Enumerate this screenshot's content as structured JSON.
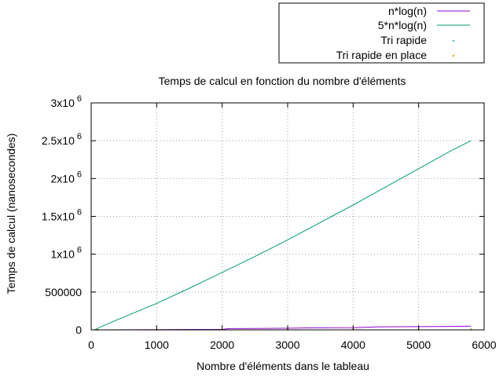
{
  "chart_data": {
    "type": "line",
    "title": "Temps de calcul en fonction du nombre d'éléments",
    "xlabel": "Nombre d'éléments dans le tableau",
    "ylabel": "Temps de calcul (nanosecondes)",
    "xlim": [
      0,
      6000
    ],
    "ylim": [
      0,
      3000000
    ],
    "grid": true,
    "legend_position": "top-right-outside",
    "x_ticks": [
      {
        "value": 0,
        "label": "0"
      },
      {
        "value": 1000,
        "label": "1000"
      },
      {
        "value": 2000,
        "label": "2000"
      },
      {
        "value": 3000,
        "label": "3000"
      },
      {
        "value": 4000,
        "label": "4000"
      },
      {
        "value": 5000,
        "label": "5000"
      },
      {
        "value": 6000,
        "label": "6000"
      }
    ],
    "y_ticks": [
      {
        "value": 0,
        "mant": "0",
        "exp": ""
      },
      {
        "value": 500000,
        "mant": "500000",
        "exp": ""
      },
      {
        "value": 1000000,
        "mant": "1x10",
        "exp": "6"
      },
      {
        "value": 1500000,
        "mant": "1.5x10",
        "exp": "6"
      },
      {
        "value": 2000000,
        "mant": "2x10",
        "exp": "6"
      },
      {
        "value": 2500000,
        "mant": "2.5x10",
        "exp": "6"
      },
      {
        "value": 3000000,
        "mant": "3x10",
        "exp": "6"
      }
    ],
    "series": [
      {
        "name": "n*log(n)",
        "style": "line",
        "color": "#9400d3",
        "x": [
          100,
          500,
          1000,
          1500,
          2000,
          2100,
          2500,
          3000,
          3300,
          3500,
          4000,
          4400,
          4500,
          5000,
          5500,
          5800
        ],
        "y": [
          200,
          1350,
          3000,
          4750,
          6600,
          17000,
          19000,
          22000,
          25500,
          26500,
          29000,
          40000,
          40500,
          43000,
          46000,
          50000
        ]
      },
      {
        "name": "5*n*log(n)",
        "style": "line",
        "color": "#009e73",
        "x": [
          50,
          200,
          500,
          1000,
          1500,
          2000,
          2500,
          3000,
          3500,
          4000,
          4500,
          5000,
          5500,
          5800
        ],
        "y": [
          0,
          60000,
          170000,
          350000,
          550000,
          760000,
          970000,
          1190000,
          1420000,
          1650000,
          1890000,
          2130000,
          2370000,
          2500000
        ]
      },
      {
        "name": "Tri rapide",
        "style": "points",
        "color": "#56b4e9",
        "x": [
          100,
          1000,
          2000,
          3000,
          4000,
          5000,
          5800
        ],
        "y": [
          500,
          2500,
          4000,
          5000,
          6000,
          7000,
          8000
        ]
      },
      {
        "name": "Tri rapide en place",
        "style": "points",
        "color": "#e69f00",
        "x": [
          100,
          1000,
          2000,
          3000,
          4000,
          5000,
          5800
        ],
        "y": [
          300,
          1500,
          2500,
          3500,
          4000,
          4500,
          5000
        ]
      }
    ]
  }
}
